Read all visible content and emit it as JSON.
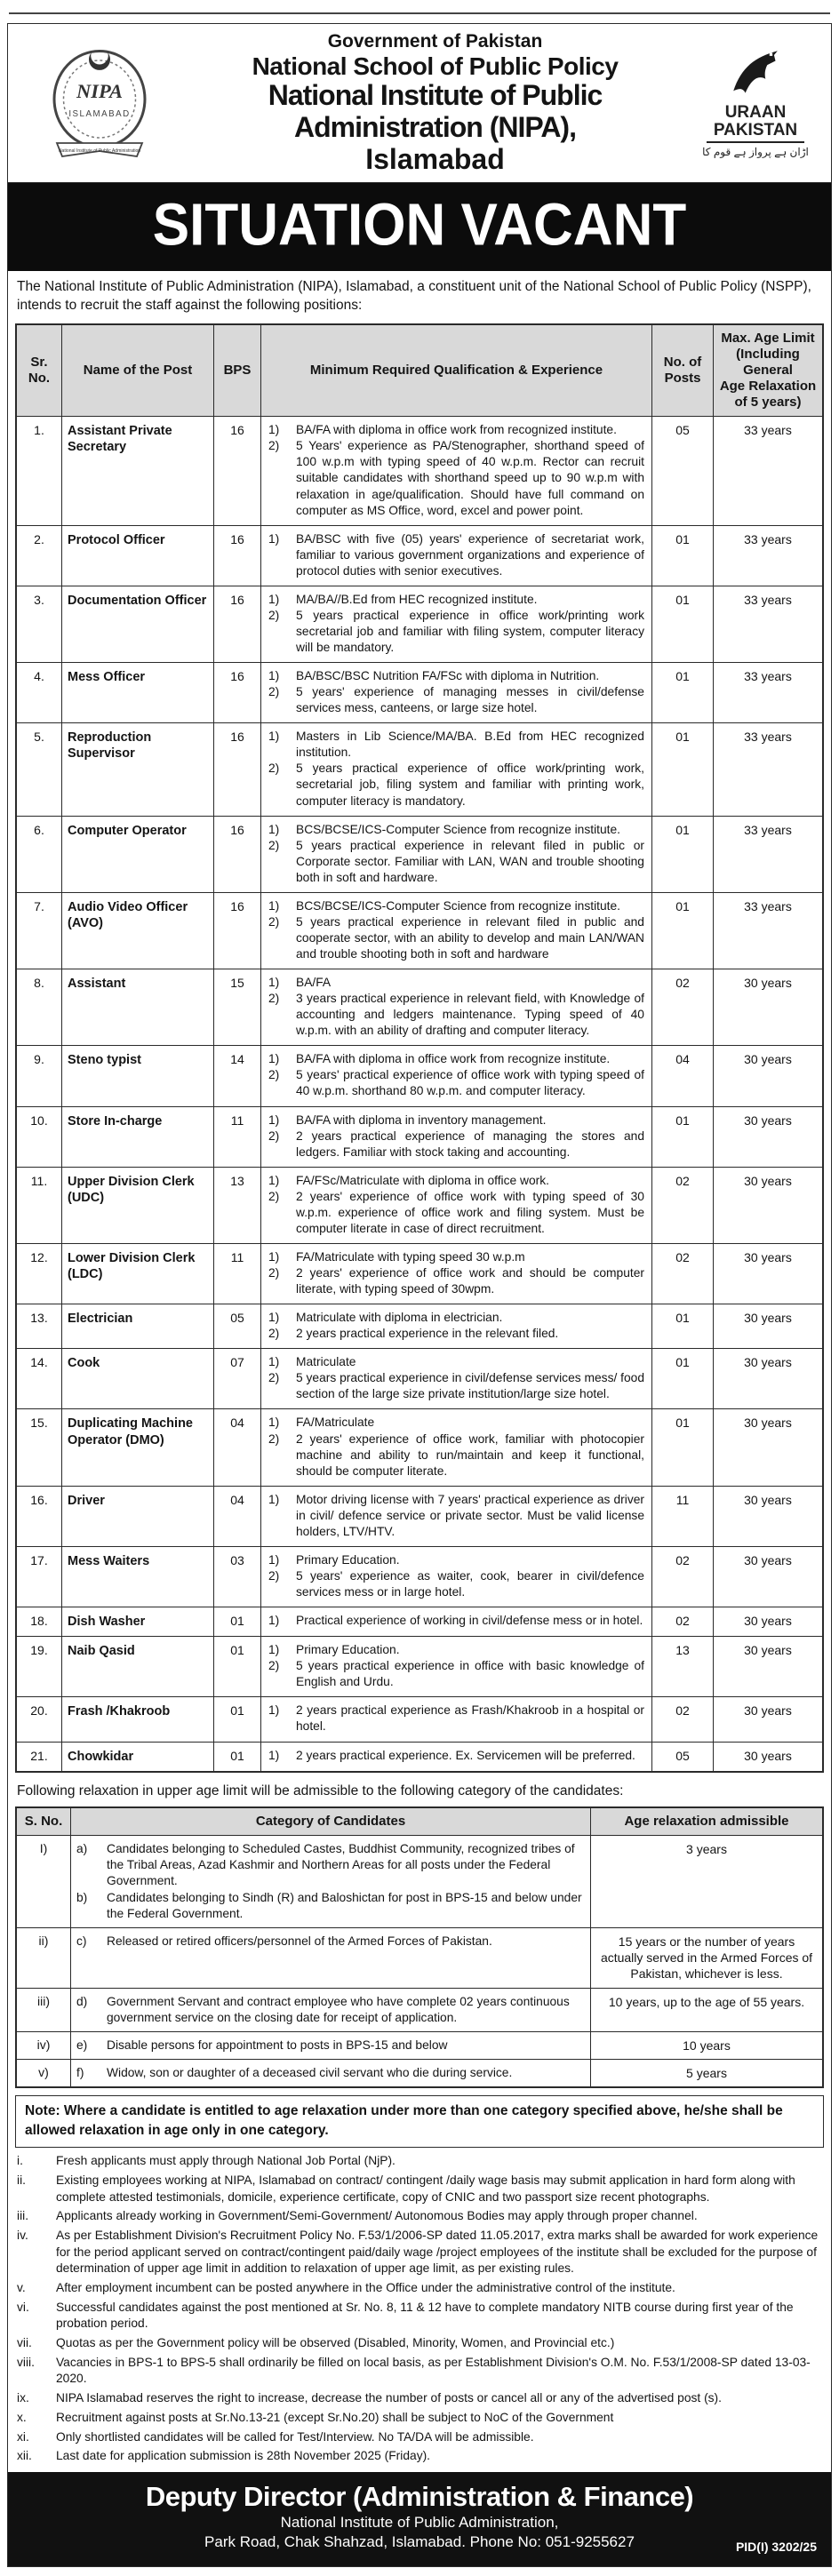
{
  "header": {
    "govt": "Government of Pakistan",
    "school": "National School of Public Policy",
    "institute": "National Institute of Public Administration (NIPA),",
    "city": "Islamabad",
    "left_logo": {
      "name": "NIPA",
      "sub": "ISLAMABAD",
      "ribbon": "National Institute of Public Administration"
    },
    "right_logo": {
      "line1": "URAAN",
      "line2": "PAKISTAN",
      "urdu_tagline": "اڑان ہے پرواز ہے قوم کا"
    }
  },
  "banner": "SITUATION VACANT",
  "intro": "The National Institute of Public Administration (NIPA), Islamabad, a constituent unit of the National School of Public Policy (NSPP), intends to recruit the  staff against the following positions:",
  "jobs_table": {
    "headers": {
      "sr": "Sr.\nNo.",
      "post": "Name of the Post",
      "bps": "BPS",
      "qual": "Minimum Required Qualification & Experience",
      "posts": "No. of\nPosts",
      "age": "Max. Age Limit\n(Including General\nAge Relaxation\nof 5 years)"
    },
    "rows": [
      {
        "sr": "1.",
        "post": "Assistant Private Secretary",
        "bps": "16",
        "quals": [
          "BA/FA with diploma in office work from recognized institute.",
          "5 Years' experience as PA/Stenographer, shorthand speed of 100 w.p.m with typing speed of 40 w.p.m. Rector can recruit suitable candidates with shorthand speed up to 90 w.p.m with relaxation in age/qualification. Should have full command on computer as MS Office, word, excel and power point."
        ],
        "posts": "05",
        "age": "33 years"
      },
      {
        "sr": "2.",
        "post": "Protocol Officer",
        "bps": "16",
        "quals": [
          "BA/BSC with five (05) years' experience of secretariat work, familiar to various government organizations and experience of protocol duties with senior executives."
        ],
        "posts": "01",
        "age": "33 years"
      },
      {
        "sr": "3.",
        "post": "Documentation Officer",
        "bps": "16",
        "quals": [
          "MA/BA//B.Ed from HEC recognized institute.",
          "5 years practical experience in office work/printing work secretarial job and familiar with filing system, computer literacy will be mandatory."
        ],
        "posts": "01",
        "age": "33 years"
      },
      {
        "sr": "4.",
        "post": "Mess Officer",
        "bps": "16",
        "quals": [
          "BA/BSC/BSC Nutrition FA/FSc with diploma in Nutrition.",
          "5 years' experience of managing messes in civil/defense services mess, canteens, or large size hotel."
        ],
        "posts": "01",
        "age": "33 years"
      },
      {
        "sr": "5.",
        "post": "Reproduction Supervisor",
        "bps": "16",
        "quals": [
          "Masters in Lib Science/MA/BA. B.Ed from HEC recognized institution.",
          "5 years practical experience of office work/printing work, secretarial job, filing system and familiar with printing work, computer literacy is mandatory."
        ],
        "posts": "01",
        "age": "33 years"
      },
      {
        "sr": "6.",
        "post": "Computer Operator",
        "bps": "16",
        "quals": [
          "BCS/BCSE/ICS-Computer Science from recognize  institute.",
          "5 years practical experience in relevant filed in public or Corporate sector. Familiar with LAN, WAN and trouble shooting both in soft and hardware."
        ],
        "posts": "01",
        "age": "33 years"
      },
      {
        "sr": "7.",
        "post": "Audio Video Officer (AVO)",
        "bps": "16",
        "quals": [
          "BCS/BCSE/ICS-Computer Science from recognize institute.",
          "5 years practical experience in relevant filed in public and cooperate sector, with an ability to develop and main LAN/WAN and trouble shooting both in soft and hardware"
        ],
        "posts": "01",
        "age": "33 years"
      },
      {
        "sr": "8.",
        "post": "Assistant",
        "bps": "15",
        "quals": [
          "BA/FA",
          "3 years practical experience in relevant field, with Knowledge of accounting and ledgers maintenance. Typing speed of 40 w.p.m. with an ability of drafting and computer literacy."
        ],
        "posts": "02",
        "age": "30 years"
      },
      {
        "sr": "9.",
        "post": "Steno typist",
        "bps": "14",
        "quals": [
          "BA/FA with diploma in office work from recognize institute.",
          "5 years' practical experience of office work with typing speed of 40 w.p.m. shorthand 80 w.p.m. and computer literacy."
        ],
        "posts": "04",
        "age": "30 years"
      },
      {
        "sr": "10.",
        "post": "Store In-charge",
        "bps": "11",
        "quals": [
          "BA/FA with diploma in inventory management.",
          "2 years practical experience of managing the stores and ledgers. Familiar with stock taking and accounting."
        ],
        "posts": "01",
        "age": "30 years"
      },
      {
        "sr": "11.",
        "post": "Upper Division Clerk (UDC)",
        "bps": "13",
        "quals": [
          "FA/FSc/Matriculate with diploma in office work.",
          "2 years' experience of office work with typing speed of 30 w.p.m. experience of office work and filing system. Must be computer literate in case of direct recruitment."
        ],
        "posts": "02",
        "age": "30 years"
      },
      {
        "sr": "12.",
        "post": "Lower Division Clerk (LDC)",
        "bps": "11",
        "quals": [
          "FA/Matriculate with typing speed 30 w.p.m",
          "2 years' experience of office work and should be computer literate, with typing speed of 30wpm."
        ],
        "posts": "02",
        "age": "30 years"
      },
      {
        "sr": "13.",
        "post": "Electrician",
        "bps": "05",
        "quals": [
          "Matriculate with diploma in electrician.",
          "2 years practical experience in the relevant filed."
        ],
        "posts": "01",
        "age": "30 years"
      },
      {
        "sr": "14.",
        "post": "Cook",
        "bps": "07",
        "quals": [
          "Matriculate",
          "5 years practical experience in civil/defense services  mess/ food section of the large size private institution/large  size hotel."
        ],
        "posts": "01",
        "age": "30 years"
      },
      {
        "sr": "15.",
        "post": "Duplicating Machine Operator (DMO)",
        "bps": "04",
        "quals": [
          "FA/Matriculate",
          "2 years' experience of office work, familiar with photocopier machine and ability to run/maintain and keep it functional, should be computer literate."
        ],
        "posts": "01",
        "age": "30 years"
      },
      {
        "sr": "16.",
        "post": "Driver",
        "bps": "04",
        "quals": [
          "Motor driving license with 7 years' practical experience as driver in civil/ defence service or private sector. Must be valid license holders, LTV/HTV."
        ],
        "posts": "11",
        "age": "30 years"
      },
      {
        "sr": "17.",
        "post": "Mess Waiters",
        "bps": "03",
        "quals": [
          "Primary Education.",
          "5 years' experience as waiter, cook, bearer in civil/defence services mess or in large hotel."
        ],
        "posts": "02",
        "age": "30 years"
      },
      {
        "sr": "18.",
        "post": "Dish Washer",
        "bps": "01",
        "quals": [
          "Practical experience of working in civil/defense mess or in hotel."
        ],
        "posts": "02",
        "age": "30 years"
      },
      {
        "sr": "19.",
        "post": "Naib Qasid",
        "bps": "01",
        "quals": [
          "Primary Education.",
          "5 years practical experience in office with basic knowledge of English and Urdu."
        ],
        "posts": "13",
        "age": "30 years"
      },
      {
        "sr": "20.",
        "post": "Frash /Khakroob",
        "bps": "01",
        "quals": [
          "2 years practical experience as Frash/Khakroob in a hospital or hotel."
        ],
        "posts": "02",
        "age": "30 years"
      },
      {
        "sr": "21.",
        "post": "Chowkidar",
        "bps": "01",
        "quals": [
          "2 years practical experience. Ex. Servicemen will be preferred."
        ],
        "posts": "05",
        "age": "30 years"
      }
    ]
  },
  "relaxation_intro": "Following relaxation in upper age limit will be admissible to the following category of the candidates:",
  "relaxation_table": {
    "headers": {
      "sno": "S. No.",
      "category": "Category of Candidates",
      "relax": "Age relaxation admissible"
    },
    "rows": [
      {
        "sno": "I)",
        "items": [
          {
            "letter": "a)",
            "text": "Candidates belonging to Scheduled Castes, Buddhist Community, recognized tribes of the Tribal Areas, Azad Kashmir and Northern Areas for all posts under the Federal Government."
          },
          {
            "letter": "b)",
            "text": "Candidates belonging to Sindh (R) and Baloshictan for post in BPS-15 and below under the Federal Government."
          }
        ],
        "relax": "3 years"
      },
      {
        "sno": "ii)",
        "items": [
          {
            "letter": "c)",
            "text": "Released or retired officers/personnel of the Armed Forces of Pakistan."
          }
        ],
        "relax": "15 years or the number of years actually served in the Armed Forces of Pakistan, whichever is less."
      },
      {
        "sno": "iii)",
        "items": [
          {
            "letter": "d)",
            "text": "Government Servant and contract employee who have complete 02 years continuous government service on the closing date for receipt of application."
          }
        ],
        "relax": "10 years, up to the age of 55 years."
      },
      {
        "sno": "iv)",
        "items": [
          {
            "letter": "e)",
            "text": "Disable persons for appointment to posts in BPS-15 and below"
          }
        ],
        "relax": "10 years"
      },
      {
        "sno": "v)",
        "items": [
          {
            "letter": "f)",
            "text": "Widow, son or daughter of a deceased civil servant who die during service."
          }
        ],
        "relax": "5 years"
      }
    ]
  },
  "note": "Note: Where a candidate is entitled to age relaxation under more than one category specified above, he/she shall be allowed relaxation in age only in one category.",
  "notes": [
    {
      "num": "i.",
      "text": "Fresh applicants must apply through National Job Portal (NjP)."
    },
    {
      "num": "ii.",
      "text": "Existing employees working at NIPA, Islamabad on contract/ contingent /daily wage basis may submit application in hard form along with complete attested testimonials, domicile, experience certificate, copy of CNIC and two passport size  recent photographs."
    },
    {
      "num": "iii.",
      "text": "Applicants already working in Government/Semi-Government/ Autonomous Bodies may apply through proper channel."
    },
    {
      "num": "iv.",
      "text": "As per Establishment Division's Recruitment Policy No. F.53/1/2006-SP dated 11.05.2017, extra marks shall be awarded for work experience for the period applicant served on contract/contingent paid/daily wage /project employees of the institute shall be excluded for the purpose of determination of upper age limit in addition to relaxation of upper age limit, as per existing rules."
    },
    {
      "num": "v.",
      "text": "After employment incumbent can be posted anywhere in the Office under the administrative control of the institute."
    },
    {
      "num": "vi.",
      "text": "Successful candidates against the post mentioned at Sr. No. 8, 11 & 12 have to complete mandatory NITB course during first year of the probation period."
    },
    {
      "num": "vii.",
      "text": "Quotas as per the Government policy will be observed (Disabled, Minority, Women, and Provincial etc.)"
    },
    {
      "num": "viii.",
      "text": "Vacancies in BPS-1 to BPS-5 shall ordinarily be filled on local basis, as per Establishment Division's O.M. No. F.53/1/2008-SP dated 13-03-2020."
    },
    {
      "num": "ix.",
      "text": "NIPA Islamabad reserves the right to increase, decrease the number of posts or cancel all or any of the advertised post (s)."
    },
    {
      "num": "x.",
      "text": "Recruitment against posts at Sr.No.13-21 (except Sr.No.20) shall be subject to NoC of the Government"
    },
    {
      "num": "xi.",
      "text": "Only shortlisted candidates will be called for Test/Interview. No TA/DA will be admissible."
    },
    {
      "num": "xii.",
      "text": "Last date for application submission is 28th November 2025 (Friday)."
    }
  ],
  "footer": {
    "title": "Deputy Director (Administration & Finance)",
    "line2": "National Institute of Public Administration,",
    "line3": "Park Road, Chak Shahzad, Islamabad. Phone No: 051-9255627",
    "pid": "PID(I) 3202/25"
  }
}
